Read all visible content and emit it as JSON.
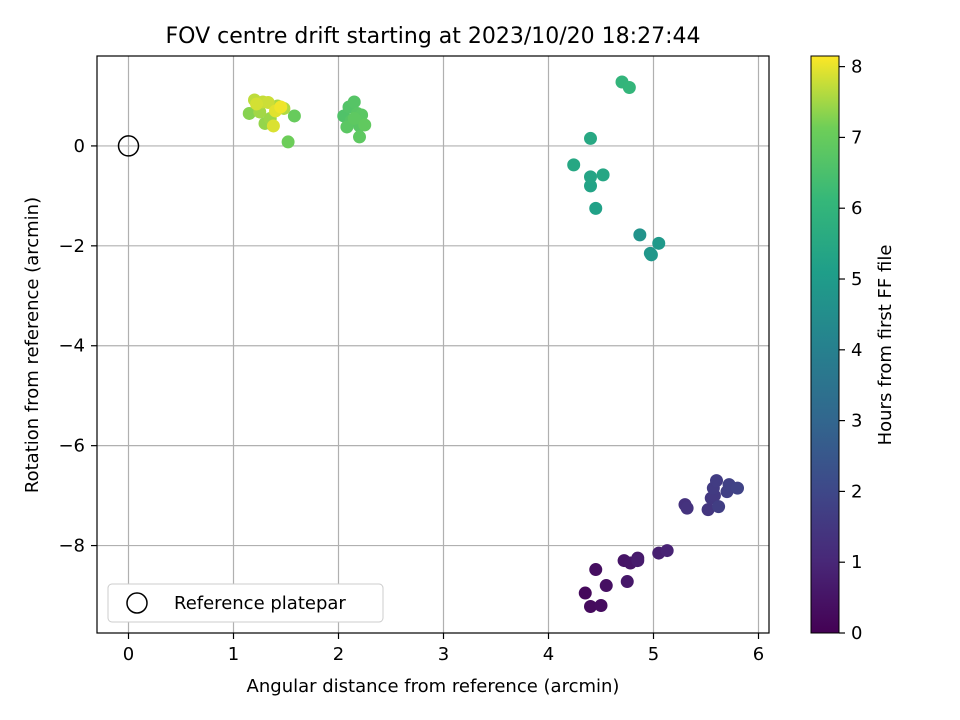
{
  "chart_data": {
    "type": "scatter",
    "title": "FOV centre drift starting at 2023/10/20 18:27:44",
    "xlabel": "Angular distance from reference (arcmin)",
    "ylabel": "Rotation from reference (arcmin)",
    "xlim": [
      -0.3,
      6.1
    ],
    "ylim": [
      -9.75,
      1.8
    ],
    "xticks": [
      0,
      1,
      2,
      3,
      4,
      5,
      6
    ],
    "yticks": [
      0,
      -2,
      -4,
      -6,
      -8
    ],
    "grid": true,
    "legend": {
      "placement": "lower-left",
      "entries": [
        "Reference platepar"
      ]
    },
    "reference_point": {
      "x": 0,
      "y": 0,
      "label": "Reference platepar"
    },
    "colorbar": {
      "label": "Hours from first FF file",
      "range": [
        0,
        8.15
      ],
      "ticks": [
        0,
        1,
        2,
        3,
        4,
        5,
        6,
        7,
        8
      ],
      "colormap": "viridis"
    },
    "points": [
      {
        "x": 4.35,
        "y": -8.95,
        "h": 0.2
      },
      {
        "x": 4.4,
        "y": -9.22,
        "h": 0.25
      },
      {
        "x": 4.5,
        "y": -9.2,
        "h": 0.3
      },
      {
        "x": 4.45,
        "y": -8.48,
        "h": 0.35
      },
      {
        "x": 4.55,
        "y": -8.8,
        "h": 0.4
      },
      {
        "x": 4.72,
        "y": -8.3,
        "h": 0.5
      },
      {
        "x": 4.78,
        "y": -8.35,
        "h": 0.55
      },
      {
        "x": 4.75,
        "y": -8.72,
        "h": 0.6
      },
      {
        "x": 4.85,
        "y": -8.25,
        "h": 0.65
      },
      {
        "x": 4.85,
        "y": -8.3,
        "h": 0.7
      },
      {
        "x": 5.05,
        "y": -8.15,
        "h": 0.8
      },
      {
        "x": 5.13,
        "y": -8.1,
        "h": 0.9
      },
      {
        "x": 5.3,
        "y": -7.18,
        "h": 1.3
      },
      {
        "x": 5.32,
        "y": -7.25,
        "h": 1.35
      },
      {
        "x": 5.52,
        "y": -7.28,
        "h": 1.45
      },
      {
        "x": 5.55,
        "y": -7.05,
        "h": 1.5
      },
      {
        "x": 5.58,
        "y": -7.0,
        "h": 1.55
      },
      {
        "x": 5.57,
        "y": -6.85,
        "h": 1.6
      },
      {
        "x": 5.6,
        "y": -6.7,
        "h": 1.65
      },
      {
        "x": 5.62,
        "y": -7.22,
        "h": 1.7
      },
      {
        "x": 5.7,
        "y": -6.92,
        "h": 1.75
      },
      {
        "x": 5.72,
        "y": -6.78,
        "h": 1.8
      },
      {
        "x": 5.8,
        "y": -6.85,
        "h": 1.85
      },
      {
        "x": 4.87,
        "y": -1.78,
        "h": 4.7
      },
      {
        "x": 4.97,
        "y": -2.15,
        "h": 4.8
      },
      {
        "x": 4.98,
        "y": -2.18,
        "h": 4.85
      },
      {
        "x": 5.05,
        "y": -1.95,
        "h": 4.9
      },
      {
        "x": 4.45,
        "y": -1.25,
        "h": 5.2
      },
      {
        "x": 4.4,
        "y": -0.8,
        "h": 5.3
      },
      {
        "x": 4.4,
        "y": -0.62,
        "h": 5.35
      },
      {
        "x": 4.52,
        "y": -0.58,
        "h": 5.4
      },
      {
        "x": 4.24,
        "y": -0.38,
        "h": 5.45
      },
      {
        "x": 4.4,
        "y": 0.15,
        "h": 5.5
      },
      {
        "x": 4.7,
        "y": 1.28,
        "h": 6.0
      },
      {
        "x": 4.77,
        "y": 1.17,
        "h": 6.05
      },
      {
        "x": 2.05,
        "y": 0.6,
        "h": 6.6
      },
      {
        "x": 2.1,
        "y": 0.78,
        "h": 6.65
      },
      {
        "x": 2.15,
        "y": 0.88,
        "h": 6.7
      },
      {
        "x": 2.12,
        "y": 0.5,
        "h": 6.7
      },
      {
        "x": 2.18,
        "y": 0.65,
        "h": 6.75
      },
      {
        "x": 2.2,
        "y": 0.4,
        "h": 6.75
      },
      {
        "x": 2.22,
        "y": 0.62,
        "h": 6.8
      },
      {
        "x": 2.08,
        "y": 0.38,
        "h": 6.8
      },
      {
        "x": 2.15,
        "y": 0.55,
        "h": 6.85
      },
      {
        "x": 2.2,
        "y": 0.18,
        "h": 6.85
      },
      {
        "x": 2.25,
        "y": 0.42,
        "h": 6.9
      },
      {
        "x": 1.58,
        "y": 0.6,
        "h": 7.0
      },
      {
        "x": 1.52,
        "y": 0.08,
        "h": 7.1
      },
      {
        "x": 1.15,
        "y": 0.65,
        "h": 7.3
      },
      {
        "x": 1.3,
        "y": 0.45,
        "h": 7.4
      },
      {
        "x": 1.35,
        "y": 0.55,
        "h": 7.45
      },
      {
        "x": 1.25,
        "y": 0.68,
        "h": 7.5
      },
      {
        "x": 1.42,
        "y": 0.8,
        "h": 7.55
      },
      {
        "x": 1.48,
        "y": 0.75,
        "h": 7.6
      },
      {
        "x": 1.2,
        "y": 0.92,
        "h": 7.7
      },
      {
        "x": 1.28,
        "y": 0.88,
        "h": 7.75
      },
      {
        "x": 1.33,
        "y": 0.87,
        "h": 7.8
      },
      {
        "x": 1.22,
        "y": 0.84,
        "h": 7.85
      },
      {
        "x": 1.38,
        "y": 0.4,
        "h": 7.9
      },
      {
        "x": 1.4,
        "y": 0.7,
        "h": 7.95
      },
      {
        "x": 1.45,
        "y": 0.78,
        "h": 8.05
      }
    ]
  }
}
